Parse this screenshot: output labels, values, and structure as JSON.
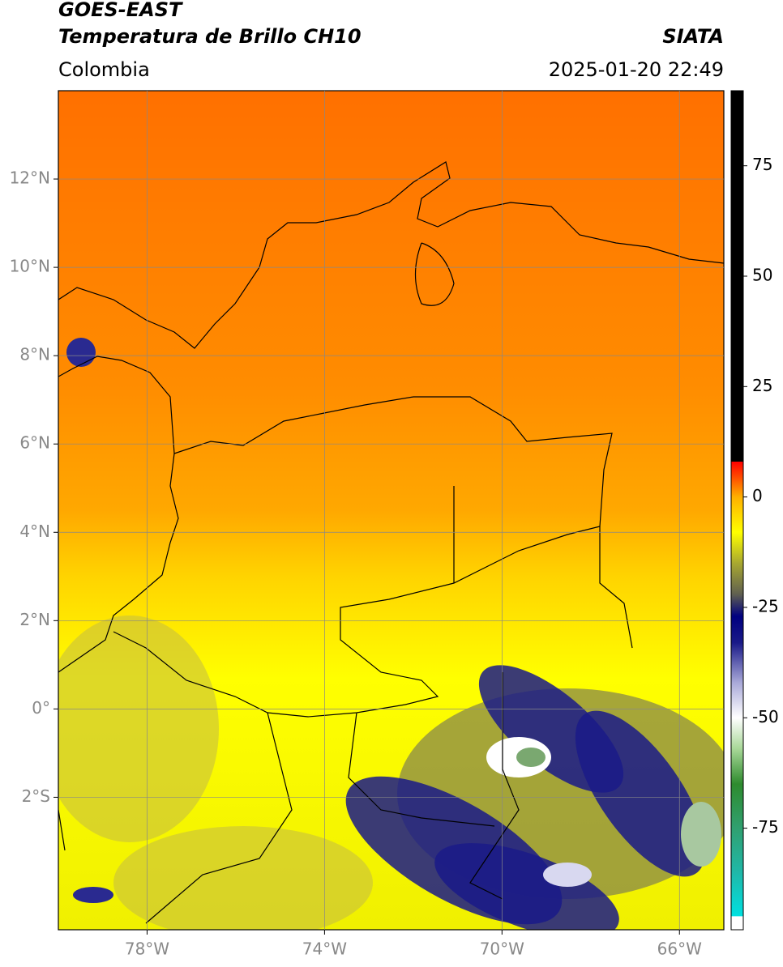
{
  "header": {
    "title": "GOES-EAST",
    "subtitle": "Temperatura de Brillo CH10",
    "region": "Colombia",
    "source": "SIATA",
    "datetime": "2025-01-20 22:49"
  },
  "map": {
    "xlim": [
      -80,
      -65
    ],
    "ylim": [
      -5,
      14
    ],
    "xticks": [
      {
        "value": -78,
        "label": "78°W"
      },
      {
        "value": -74,
        "label": "74°W"
      },
      {
        "value": -70,
        "label": "70°W"
      },
      {
        "value": -66,
        "label": "66°W"
      }
    ],
    "yticks": [
      {
        "value": 12,
        "label": "12°N"
      },
      {
        "value": 10,
        "label": "10°N"
      },
      {
        "value": 8,
        "label": "8°N"
      },
      {
        "value": 6,
        "label": "6°N"
      },
      {
        "value": 4,
        "label": "4°N"
      },
      {
        "value": 2,
        "label": "2°N"
      },
      {
        "value": 0,
        "label": "0°"
      },
      {
        "value": -2,
        "label": "2°S"
      }
    ],
    "grid": true
  },
  "colorbar": {
    "range": [
      -98,
      92
    ],
    "ticks": [
      75,
      50,
      25,
      0,
      -25,
      -50,
      -75
    ],
    "color_stops": [
      {
        "value": -98,
        "color": "#ffffff"
      },
      {
        "value": -95,
        "color": "#ffffff"
      },
      {
        "value": -94.9,
        "color": "#00e0e0"
      },
      {
        "value": -85,
        "color": "#20b8a8"
      },
      {
        "value": -75,
        "color": "#30a070"
      },
      {
        "value": -65,
        "color": "#2e8b2e"
      },
      {
        "value": -57,
        "color": "#a8d898"
      },
      {
        "value": -50,
        "color": "#ffffff"
      },
      {
        "value": -42,
        "color": "#a8a8d8"
      },
      {
        "value": -33,
        "color": "#1a1a88"
      },
      {
        "value": -27,
        "color": "#000080"
      },
      {
        "value": -22,
        "color": "#606050"
      },
      {
        "value": -15,
        "color": "#a8a830"
      },
      {
        "value": -8,
        "color": "#ffff00"
      },
      {
        "value": 0,
        "color": "#ffb000"
      },
      {
        "value": 5,
        "color": "#ff4000"
      },
      {
        "value": 8,
        "color": "#ff0000"
      },
      {
        "value": 8.01,
        "color": "#000000"
      },
      {
        "value": 92,
        "color": "#000000"
      }
    ]
  }
}
